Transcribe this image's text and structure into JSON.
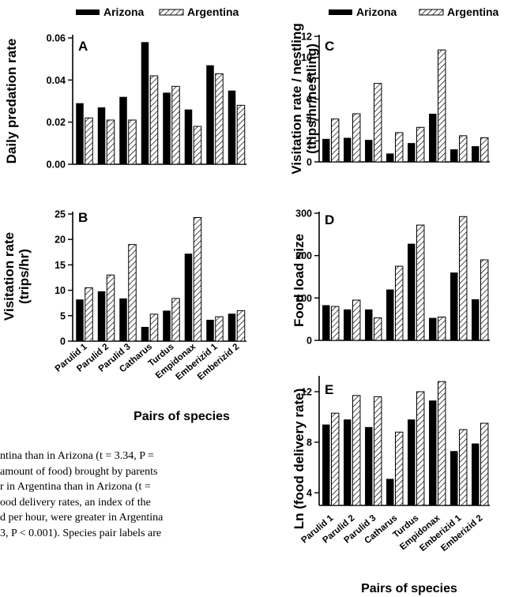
{
  "legend": {
    "series_a": "Arizona",
    "series_b": "Argentina"
  },
  "x_axis_title": "Pairs of species",
  "caption_lines": [
    "ntina than in Arizona (t = 3.34, P =",
    "amount of food) brought by parents",
    "r in Argentina than in Arizona (t =",
    "ood delivery rates, an index of the",
    "d per hour, were greater in Argentina",
    "3, P < 0.001). Species pair labels are"
  ],
  "chart_data": [
    {
      "panel": "A",
      "type": "bar",
      "categories": [
        "Parulid 1",
        "Parulid 2",
        "Parulid 3",
        "Catharus",
        "Turdus",
        "Empidonax",
        "Emberizid 1",
        "Emberizid 2"
      ],
      "series": [
        {
          "name": "Arizona",
          "values": [
            0.029,
            0.027,
            0.032,
            0.058,
            0.034,
            0.026,
            0.047,
            0.035
          ]
        },
        {
          "name": "Argentina",
          "values": [
            0.022,
            0.021,
            0.021,
            0.042,
            0.037,
            0.018,
            0.043,
            0.028
          ]
        }
      ],
      "ylabel": "Daily predation rate",
      "ylim": [
        0,
        0.06
      ],
      "yticks": [
        "0.00",
        "0.02",
        "0.04",
        "0.06"
      ],
      "show_category_labels": false
    },
    {
      "panel": "B",
      "type": "bar",
      "categories": [
        "Parulid 1",
        "Parulid 2",
        "Parulid 3",
        "Catharus",
        "Turdus",
        "Empidonax",
        "Emberizid 1",
        "Emberizid 2"
      ],
      "series": [
        {
          "name": "Arizona",
          "values": [
            8.2,
            9.8,
            8.4,
            2.8,
            6.0,
            17.2,
            4.2,
            5.4
          ]
        },
        {
          "name": "Argentina",
          "values": [
            10.5,
            13.0,
            19.0,
            5.3,
            8.4,
            24.3,
            4.8,
            6.0
          ]
        }
      ],
      "ylabel": [
        "Visitation rate",
        "(trips/hr)"
      ],
      "ylim": [
        0,
        25
      ],
      "yticks": [
        "0",
        "5",
        "10",
        "15",
        "20",
        "25"
      ],
      "show_category_labels": true
    },
    {
      "panel": "C",
      "type": "bar",
      "categories": [
        "Parulid 1",
        "Parulid 2",
        "Parulid 3",
        "Catharus",
        "Turdus",
        "Empidonax",
        "Emberizid 1",
        "Emberizid 2"
      ],
      "series": [
        {
          "name": "Arizona",
          "values": [
            2.2,
            2.3,
            2.1,
            0.8,
            1.8,
            4.6,
            1.2,
            1.5
          ]
        },
        {
          "name": "Argentina",
          "values": [
            4.1,
            4.6,
            7.5,
            2.8,
            3.3,
            10.7,
            2.5,
            2.3
          ]
        }
      ],
      "ylabel": [
        "Visitation rate / nestling",
        "(trips/hr/nestling)"
      ],
      "ylim": [
        0,
        12
      ],
      "yticks": [
        "0",
        "2",
        "4",
        "6",
        "8",
        "10",
        "12"
      ],
      "show_category_labels": false
    },
    {
      "panel": "D",
      "type": "bar",
      "categories": [
        "Parulid 1",
        "Parulid 2",
        "Parulid 3",
        "Catharus",
        "Turdus",
        "Empidonax",
        "Emberizid 1",
        "Emberizid 2"
      ],
      "series": [
        {
          "name": "Arizona",
          "values": [
            83,
            73,
            73,
            120,
            228,
            53,
            160,
            97
          ]
        },
        {
          "name": "Argentina",
          "values": [
            80,
            95,
            53,
            175,
            272,
            55,
            292,
            190
          ]
        }
      ],
      "ylabel": "Food load size",
      "ylim": [
        0,
        300
      ],
      "yticks": [
        "0",
        "100",
        "200",
        "300"
      ],
      "show_category_labels": false
    },
    {
      "panel": "E",
      "type": "bar",
      "categories": [
        "Parulid 1",
        "Parulid 2",
        "Parulid 3",
        "Catharus",
        "Turdus",
        "Empidonax",
        "Emberizid 1",
        "Emberizid 2"
      ],
      "series": [
        {
          "name": "Arizona",
          "values": [
            9.4,
            9.8,
            9.2,
            5.1,
            9.8,
            11.3,
            7.3,
            7.9
          ]
        },
        {
          "name": "Argentina",
          "values": [
            10.3,
            11.7,
            11.6,
            8.8,
            12.0,
            12.8,
            9.0,
            9.5
          ]
        }
      ],
      "ylabel": "Ln (food delivery rate)",
      "ylim": [
        3,
        13
      ],
      "yticks": [
        "4",
        "8",
        "12"
      ],
      "show_category_labels": true
    }
  ]
}
